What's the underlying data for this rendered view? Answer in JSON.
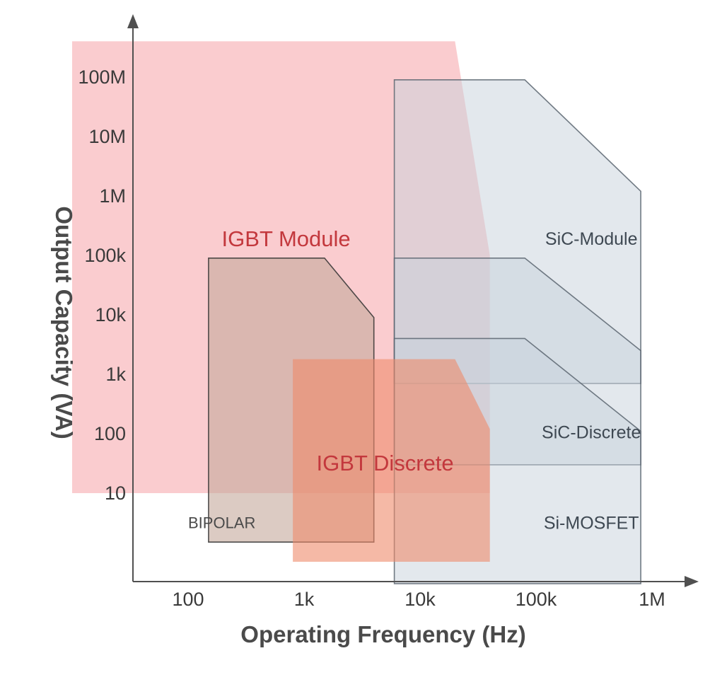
{
  "chart_data": {
    "type": "area",
    "title": "",
    "xlabel": "Operating Frequency (Hz)",
    "ylabel": "Output Capacity (VA)",
    "x_scale": "log",
    "y_scale": "log",
    "x_ticks": [
      {
        "value": 100,
        "label": "100"
      },
      {
        "value": 1000,
        "label": "1k"
      },
      {
        "value": 10000,
        "label": "10k"
      },
      {
        "value": 100000,
        "label": "100k"
      },
      {
        "value": 1000000,
        "label": "1M"
      }
    ],
    "y_ticks": [
      {
        "value": 10,
        "label": "10"
      },
      {
        "value": 100,
        "label": "100"
      },
      {
        "value": 1000,
        "label": "1k"
      },
      {
        "value": 10000,
        "label": "10k"
      },
      {
        "value": 100000,
        "label": "100k"
      },
      {
        "value": 1000000,
        "label": "1M"
      },
      {
        "value": 10000000,
        "label": "10M"
      },
      {
        "value": 100000000,
        "label": "100M"
      }
    ],
    "grid": false,
    "regions": [
      {
        "name": "IGBT Module",
        "fill": "#f59aa0",
        "fill_opacity": 0.5,
        "stroke": "none",
        "text_color": "#c3383d",
        "label_at": [
          700,
          180000
        ],
        "points": [
          [
            10,
            10
          ],
          [
            10,
            400000000
          ],
          [
            20000,
            400000000
          ],
          [
            40000,
            100000
          ],
          [
            40000,
            10
          ]
        ]
      },
      {
        "name": "SiC-Module",
        "fill": "#c8d2dc",
        "fill_opacity": 0.5,
        "stroke": "#5a6570",
        "text_color": "#3e4852",
        "label_at": [
          300000,
          180000
        ],
        "points": [
          [
            6000,
            700
          ],
          [
            6000,
            90000000
          ],
          [
            80000,
            90000000
          ],
          [
            800000,
            1200000
          ],
          [
            800000,
            700
          ]
        ]
      },
      {
        "name": "SiC-Discrete",
        "fill": "#c8d2dc",
        "fill_opacity": 0.5,
        "stroke": "#5a6570",
        "text_color": "#3e4852",
        "label_at": [
          300000,
          100
        ],
        "points": [
          [
            6000,
            30
          ],
          [
            6000,
            90000
          ],
          [
            80000,
            90000
          ],
          [
            800000,
            2500
          ],
          [
            800000,
            30
          ]
        ]
      },
      {
        "name": "Si-MOSFET",
        "fill": "#c8d2dc",
        "fill_opacity": 0.5,
        "stroke": "#5a6570",
        "text_color": "#3e4852",
        "label_at": [
          300000,
          3
        ],
        "points": [
          [
            6000,
            0.3
          ],
          [
            6000,
            4000
          ],
          [
            80000,
            4000
          ],
          [
            800000,
            110
          ],
          [
            800000,
            0.3
          ]
        ]
      },
      {
        "name": "BIPOLAR",
        "fill": "#c4a89b",
        "fill_opacity": 0.6,
        "stroke": "#333333",
        "text_color": "#4a4a4a",
        "label_at": [
          100,
          3
        ],
        "points": [
          [
            150,
            1.5
          ],
          [
            150,
            90000
          ],
          [
            1500,
            90000
          ],
          [
            4000,
            9000
          ],
          [
            4000,
            1.5
          ]
        ]
      },
      {
        "name": "IGBT Discrete",
        "fill": "#ee8a6a",
        "fill_opacity": 0.6,
        "stroke": "none",
        "text_color": "#c3383d",
        "label_at": [
          5000,
          30
        ],
        "points": [
          [
            800,
            0.7
          ],
          [
            800,
            1800
          ],
          [
            20000,
            1800
          ],
          [
            40000,
            120
          ],
          [
            40000,
            0.7
          ]
        ]
      }
    ]
  }
}
